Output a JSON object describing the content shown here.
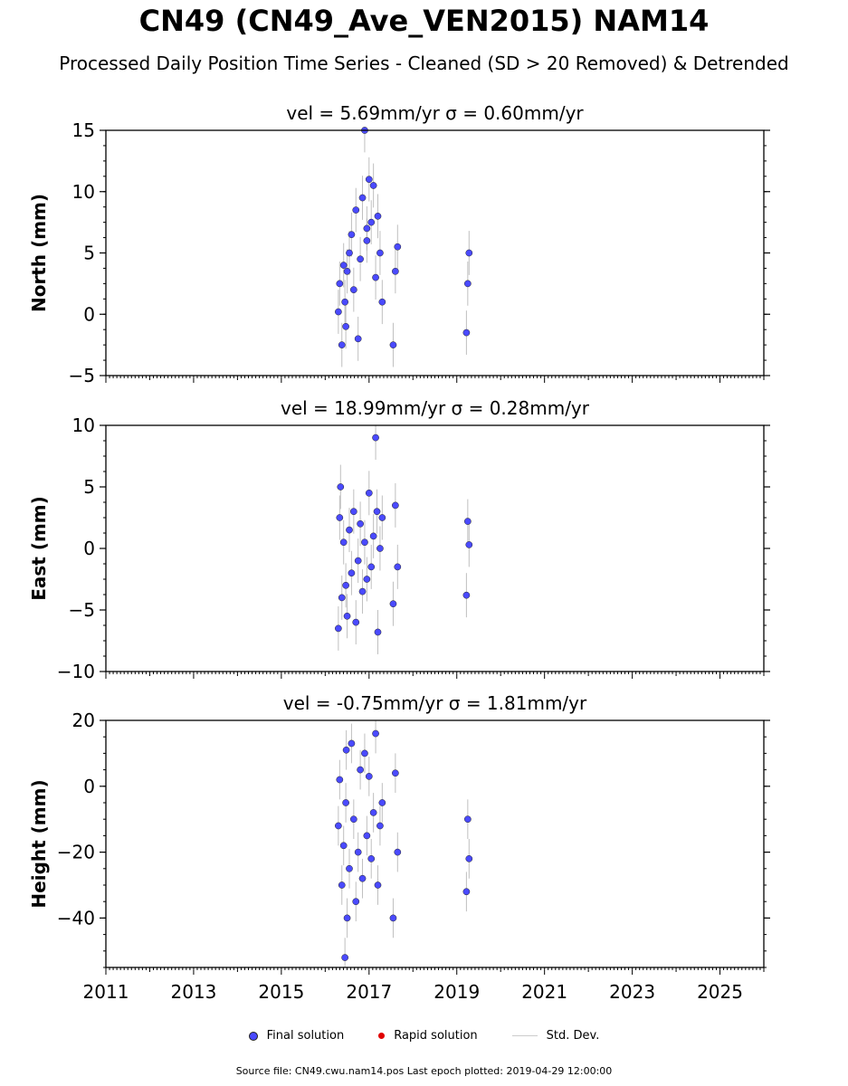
{
  "title": "CN49 (CN49_Ave_VEN2015) NAM14",
  "subtitle": "Processed Daily Position Time Series - Cleaned (SD > 20 Removed) & Detrended",
  "legend": {
    "final": "Final solution",
    "rapid": "Rapid solution",
    "std": "Std. Dev."
  },
  "source_text": "Source file: CN49.cwu.nam14.pos  Last epoch plotted: 2019-04-29 12:00:00",
  "colors": {
    "final": "#4a4aff",
    "rapid": "#e00000",
    "std": "#b0b0b0"
  },
  "chart_data": [
    {
      "type": "scatter",
      "subplot_title": "vel = 5.69mm/yr   σ = 0.60mm/yr",
      "ylabel": "North (mm)",
      "xlim": [
        2011,
        2026
      ],
      "ylim": [
        -5,
        15
      ],
      "yticks": [
        -5,
        0,
        5,
        10,
        15
      ],
      "xticks": [
        2011,
        2013,
        2015,
        2017,
        2019,
        2021,
        2023,
        2025
      ],
      "grid": false,
      "series": [
        {
          "name": "Final solution",
          "x": [
            2016.3,
            2016.33,
            2016.38,
            2016.42,
            2016.47,
            2016.5,
            2016.55,
            2016.6,
            2016.65,
            2016.7,
            2016.75,
            2016.8,
            2016.85,
            2016.9,
            2016.95,
            2017.0,
            2017.05,
            2017.1,
            2017.15,
            2017.2,
            2017.25,
            2017.3,
            2017.55,
            2017.6,
            2017.65,
            2019.22,
            2019.25,
            2019.28,
            2016.95,
            2016.45
          ],
          "y": [
            0.2,
            2.5,
            -2.5,
            4.0,
            -1.0,
            3.5,
            5.0,
            6.5,
            2.0,
            8.5,
            -2.0,
            4.5,
            9.5,
            15.0,
            6.0,
            11.0,
            7.5,
            10.5,
            3.0,
            8.0,
            5.0,
            1.0,
            -2.5,
            3.5,
            5.5,
            -1.5,
            2.5,
            5.0,
            7.0,
            1.0
          ],
          "err": [
            1.8,
            1.8,
            1.8,
            1.8,
            1.8,
            1.8,
            1.8,
            1.8,
            1.8,
            1.8,
            1.8,
            1.8,
            1.8,
            1.8,
            1.8,
            1.8,
            1.8,
            1.8,
            1.8,
            1.8,
            1.8,
            1.8,
            1.8,
            1.8,
            1.8,
            1.8,
            1.8,
            1.8,
            1.8,
            1.8
          ]
        }
      ]
    },
    {
      "type": "scatter",
      "subplot_title": "vel = 18.99mm/yr   σ = 0.28mm/yr",
      "ylabel": "East (mm)",
      "xlim": [
        2011,
        2026
      ],
      "ylim": [
        -10,
        10
      ],
      "yticks": [
        -10,
        -5,
        0,
        5,
        10
      ],
      "xticks": [
        2011,
        2013,
        2015,
        2017,
        2019,
        2021,
        2023,
        2025
      ],
      "grid": false,
      "series": [
        {
          "name": "Final solution",
          "x": [
            2016.3,
            2016.33,
            2016.38,
            2016.42,
            2016.47,
            2016.5,
            2016.55,
            2016.6,
            2016.65,
            2016.7,
            2016.75,
            2016.8,
            2016.85,
            2016.9,
            2016.95,
            2017.0,
            2017.05,
            2017.1,
            2017.15,
            2017.2,
            2017.25,
            2017.3,
            2017.55,
            2017.6,
            2017.65,
            2019.22,
            2019.25,
            2019.28,
            2016.35,
            2017.18
          ],
          "y": [
            -6.5,
            2.5,
            -4.0,
            0.5,
            -3.0,
            -5.5,
            1.5,
            -2.0,
            3.0,
            -6.0,
            -1.0,
            2.0,
            -3.5,
            0.5,
            -2.5,
            4.5,
            -1.5,
            1.0,
            9.0,
            -6.8,
            0.0,
            2.5,
            -4.5,
            3.5,
            -1.5,
            -3.8,
            2.2,
            0.3,
            5.0,
            3.0
          ],
          "err": [
            1.8,
            1.8,
            1.8,
            1.8,
            1.8,
            1.8,
            1.8,
            1.8,
            1.8,
            1.8,
            1.8,
            1.8,
            1.8,
            1.8,
            1.8,
            1.8,
            1.8,
            1.8,
            1.8,
            1.8,
            1.8,
            1.8,
            1.8,
            1.8,
            1.8,
            1.8,
            1.8,
            1.8,
            1.8,
            1.8
          ]
        }
      ]
    },
    {
      "type": "scatter",
      "subplot_title": "vel = -0.75mm/yr   σ = 1.81mm/yr",
      "ylabel": "Height (mm)",
      "xlim": [
        2011,
        2026
      ],
      "ylim": [
        -55,
        20
      ],
      "yticks": [
        -40,
        -20,
        0,
        20
      ],
      "xticks": [
        2011,
        2013,
        2015,
        2017,
        2019,
        2021,
        2023,
        2025
      ],
      "xticklabels": [
        "2011",
        "2013",
        "2015",
        "2017",
        "2019",
        "2021",
        "2023",
        "2025"
      ],
      "grid": false,
      "series": [
        {
          "name": "Final solution",
          "x": [
            2016.3,
            2016.33,
            2016.38,
            2016.42,
            2016.47,
            2016.5,
            2016.55,
            2016.6,
            2016.65,
            2016.7,
            2016.75,
            2016.8,
            2016.85,
            2016.9,
            2016.95,
            2017.0,
            2017.05,
            2017.1,
            2017.15,
            2017.2,
            2017.25,
            2017.3,
            2017.55,
            2017.6,
            2017.65,
            2019.22,
            2019.25,
            2019.28,
            2016.45,
            2016.48
          ],
          "y": [
            -12,
            2,
            -30,
            -18,
            -5,
            -40,
            -25,
            13,
            -10,
            -35,
            -20,
            5,
            -28,
            10,
            -15,
            3,
            -22,
            -8,
            16,
            -30,
            -12,
            -5,
            -40,
            4,
            -20,
            -32,
            -10,
            -22,
            -52,
            11
          ],
          "err": [
            6,
            6,
            6,
            6,
            6,
            6,
            6,
            6,
            6,
            6,
            6,
            6,
            6,
            6,
            6,
            6,
            6,
            6,
            6,
            6,
            6,
            6,
            6,
            6,
            6,
            6,
            6,
            6,
            6,
            6
          ]
        }
      ]
    }
  ]
}
